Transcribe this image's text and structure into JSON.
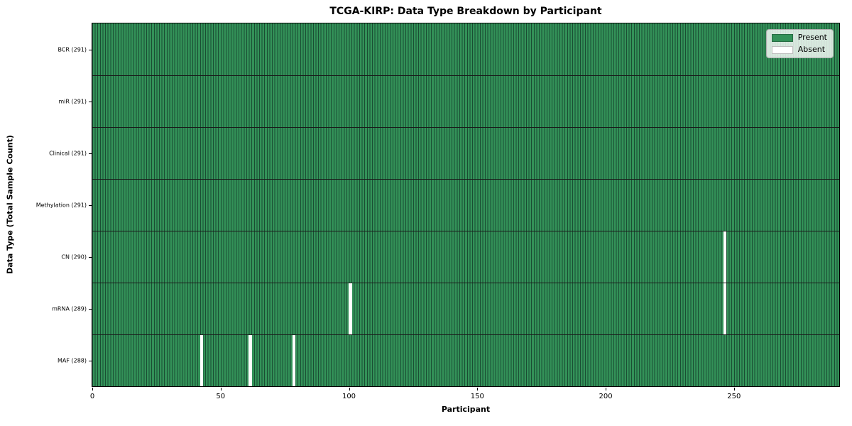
{
  "title": "TCGA-KIRP: Data Type Breakdown by Participant",
  "xlabel": "Participant",
  "ylabel": "Data Type (Total Sample Count)",
  "legend": {
    "present_label": "Present",
    "absent_label": "Absent"
  },
  "colors": {
    "present": "#339158",
    "cell_edge": "#1a4d33",
    "absent": "#ffffff",
    "row_separator": "#1a1a1a",
    "spine": "#000000"
  },
  "chart_data": {
    "type": "heatmap",
    "title": "TCGA-KIRP: Data Type Breakdown by Participant",
    "xlabel": "Participant",
    "ylabel": "Data Type (Total Sample Count)",
    "n_participants": 291,
    "x_ticks": [
      0,
      50,
      100,
      150,
      200,
      250
    ],
    "grid": false,
    "legend_position": "upper right",
    "legend": [
      {
        "label": "Present",
        "color": "#339158"
      },
      {
        "label": "Absent",
        "color": "#ffffff"
      }
    ],
    "rows": [
      {
        "name": "BCR",
        "label": "BCR (291)",
        "total": 291,
        "absent_participants": []
      },
      {
        "name": "miR",
        "label": "miR (291)",
        "total": 291,
        "absent_participants": []
      },
      {
        "name": "Clinical",
        "label": "Clinical (291)",
        "total": 291,
        "absent_participants": []
      },
      {
        "name": "Methylation",
        "label": "Methylation (291)",
        "total": 291,
        "absent_participants": []
      },
      {
        "name": "CN",
        "label": "CN (290)",
        "total": 290,
        "absent_participants": [
          246
        ]
      },
      {
        "name": "mRNA",
        "label": "mRNA (289)",
        "total": 289,
        "absent_participants": [
          100,
          246
        ]
      },
      {
        "name": "MAF",
        "label": "MAF (288)",
        "total": 288,
        "absent_participants": [
          42,
          61,
          78
        ]
      }
    ]
  }
}
